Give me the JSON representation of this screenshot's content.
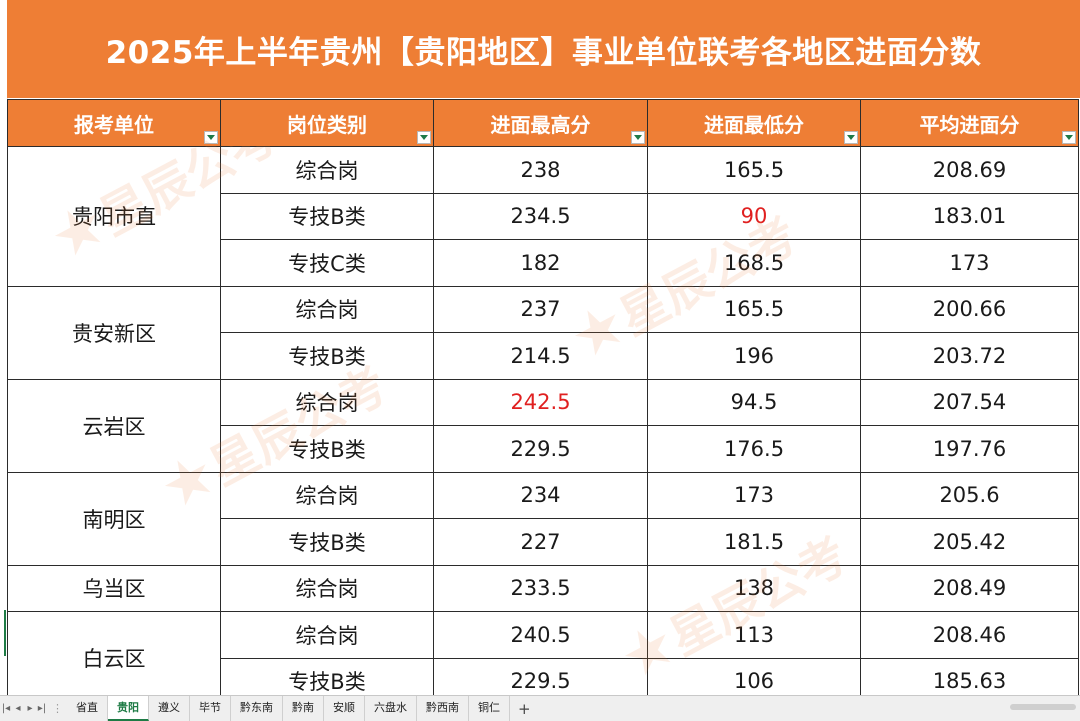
{
  "title": "2025年上半年贵州【贵阳地区】事业单位联考各地区进面分数",
  "watermark": {
    "icon": "star-logo-icon",
    "text": "星辰公考"
  },
  "table": {
    "headers": [
      "报考单位",
      "岗位类别",
      "进面最高分",
      "进面最低分",
      "平均进面分"
    ],
    "groups": [
      {
        "unit": "贵阳市直",
        "rows": [
          {
            "category": "综合岗",
            "max": "238",
            "min": "165.5",
            "avg": "208.69"
          },
          {
            "category": "专技B类",
            "max": "234.5",
            "min": "90",
            "avg": "183.01",
            "min_highlight": true
          },
          {
            "category": "专技C类",
            "max": "182",
            "min": "168.5",
            "avg": "173"
          }
        ]
      },
      {
        "unit": "贵安新区",
        "rows": [
          {
            "category": "综合岗",
            "max": "237",
            "min": "165.5",
            "avg": "200.66"
          },
          {
            "category": "专技B类",
            "max": "214.5",
            "min": "196",
            "avg": "203.72"
          }
        ]
      },
      {
        "unit": "云岩区",
        "rows": [
          {
            "category": "综合岗",
            "max": "242.5",
            "min": "94.5",
            "avg": "207.54",
            "max_highlight": true
          },
          {
            "category": "专技B类",
            "max": "229.5",
            "min": "176.5",
            "avg": "197.76"
          }
        ]
      },
      {
        "unit": "南明区",
        "rows": [
          {
            "category": "综合岗",
            "max": "234",
            "min": "173",
            "avg": "205.6"
          },
          {
            "category": "专技B类",
            "max": "227",
            "min": "181.5",
            "avg": "205.42"
          }
        ]
      },
      {
        "unit": "乌当区",
        "rows": [
          {
            "category": "综合岗",
            "max": "233.5",
            "min": "138",
            "avg": "208.49"
          }
        ]
      },
      {
        "unit": "白云区",
        "rows": [
          {
            "category": "综合岗",
            "max": "240.5",
            "min": "113",
            "avg": "208.46"
          },
          {
            "category": "专技B类",
            "max": "229.5",
            "min": "106",
            "avg": "185.63"
          }
        ]
      }
    ]
  },
  "tabs": {
    "items": [
      "省直",
      "贵阳",
      "遵义",
      "毕节",
      "黔东南",
      "黔南",
      "安顺",
      "六盘水",
      "黔西南",
      "铜仁"
    ],
    "active": "贵阳",
    "add_label": "+"
  },
  "colors": {
    "header": "#ee7e35",
    "highlight": "#e02020",
    "active_tab": "#1e7b45"
  }
}
